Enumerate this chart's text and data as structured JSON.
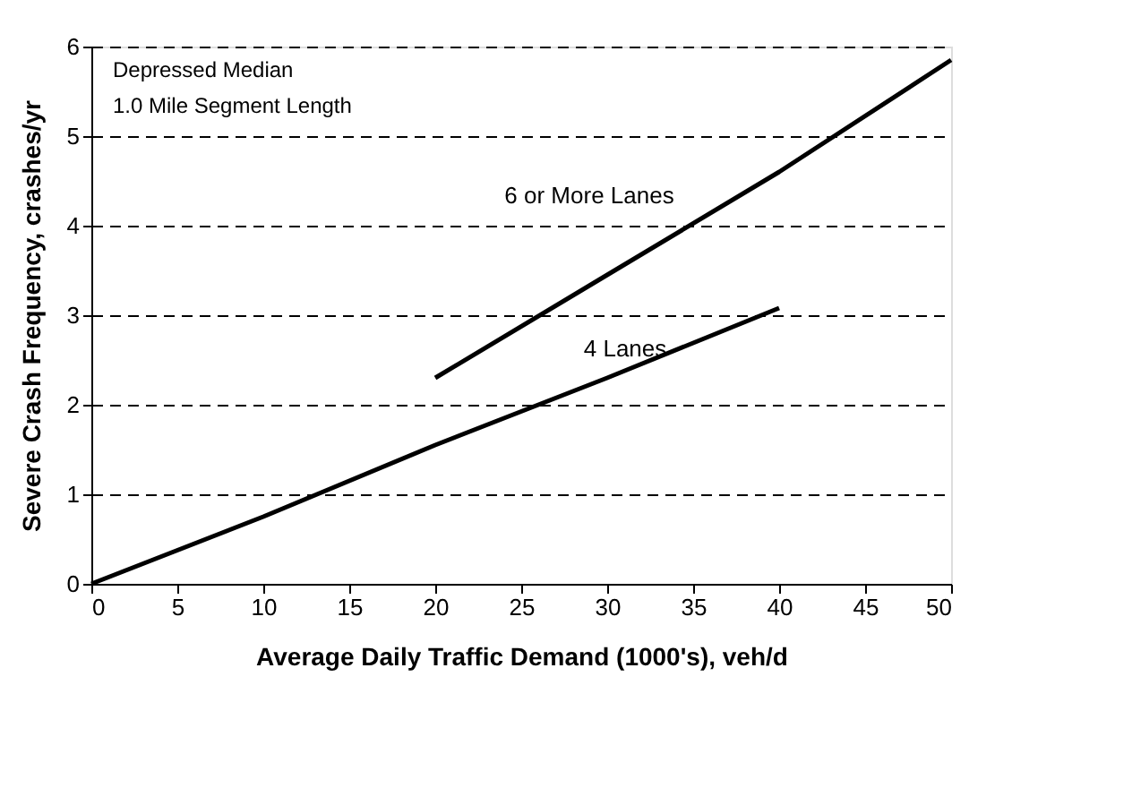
{
  "chart_data": {
    "type": "line",
    "xlabel": "Average Daily Traffic Demand (1000's), veh/d",
    "ylabel": "Severe Crash Frequency, crashes/yr",
    "series": [
      {
        "name": "4 Lanes",
        "color": "#000000",
        "x": [
          0,
          10,
          20,
          30,
          40
        ],
        "values": [
          0,
          0.75,
          1.55,
          2.3,
          3.08
        ]
      },
      {
        "name": "6 or More Lanes",
        "color": "#000000",
        "x": [
          20,
          30,
          40,
          50
        ],
        "values": [
          2.3,
          3.45,
          4.6,
          5.85
        ]
      }
    ],
    "annotations": [
      "Depressed Median",
      "1.0 Mile Segment Length"
    ],
    "xlim": [
      0,
      50
    ],
    "xticks": [
      0,
      5,
      10,
      15,
      20,
      25,
      30,
      35,
      40,
      45,
      50
    ],
    "ylim": [
      0,
      6
    ],
    "yticks": [
      0,
      1,
      2,
      3,
      4,
      5,
      6
    ],
    "grid": "y",
    "line_style": "solid",
    "marker": "none"
  }
}
